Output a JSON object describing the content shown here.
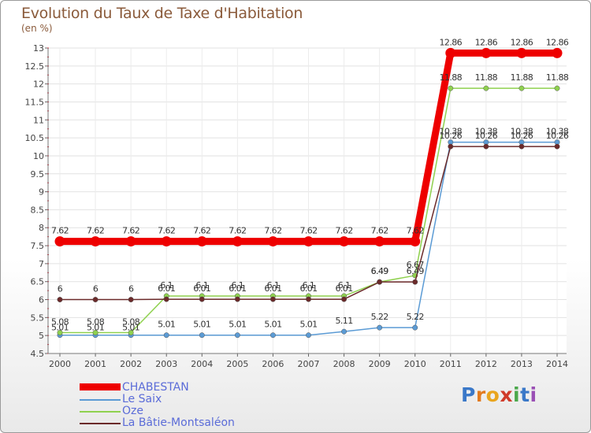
{
  "chart_data": {
    "type": "line",
    "title": "Evolution du Taux de Taxe d'Habitation",
    "ylabel": "(en %)",
    "xlabel": "",
    "ylim": [
      4.5,
      13
    ],
    "yticks": [
      "4.5",
      "5",
      "5.5",
      "6",
      "6.5",
      "7",
      "7.5",
      "8",
      "8.5",
      "9",
      "9.5",
      "10",
      "10.5",
      "11",
      "11.5",
      "12",
      "12.5",
      "13"
    ],
    "categories": [
      "2000",
      "2001",
      "2002",
      "2003",
      "2004",
      "2005",
      "2006",
      "2007",
      "2008",
      "2009",
      "2010",
      "2011",
      "2012",
      "2013",
      "2014"
    ],
    "series": [
      {
        "name": "Le Saix",
        "color": "#5b9bd5",
        "values": [
          5.01,
          5.01,
          5.01,
          5.01,
          5.01,
          5.01,
          5.01,
          5.01,
          5.11,
          5.22,
          5.22,
          10.38,
          10.38,
          10.38,
          10.38
        ],
        "labels": [
          "5.01",
          "5.01",
          "5.01",
          "5.01",
          "5.01",
          "5.01",
          "5.01",
          "5.01",
          "5.11",
          "5.22",
          "5.22",
          "10.38",
          "10.38",
          "10.38",
          "10.38"
        ]
      },
      {
        "name": "Oze",
        "color": "#8fd14f",
        "values": [
          5.08,
          5.08,
          5.08,
          6.1,
          6.1,
          6.1,
          6.1,
          6.1,
          6.1,
          6.49,
          6.67,
          11.88,
          11.88,
          11.88,
          11.88
        ],
        "labels": [
          "5.08",
          "5.08",
          "5.08",
          "6.1",
          "6.1",
          "6.1",
          "6.1",
          "6.1",
          "6.1",
          "6.49",
          "6.67",
          "11.88",
          "11.88",
          "11.88",
          "11.88"
        ]
      },
      {
        "name": "La Bâtie-Montsaléon",
        "color": "#6b2a2a",
        "values": [
          6,
          6,
          6,
          6.01,
          6.01,
          6.01,
          6.01,
          6.01,
          6.01,
          6.49,
          6.49,
          10.26,
          10.26,
          10.26,
          10.26
        ],
        "labels": [
          "6",
          "6",
          "6",
          "6.01",
          "6.01",
          "6.01",
          "6.01",
          "6.01",
          "6.01",
          "6.49",
          "6.49",
          "10.26",
          "10.26",
          "10.26",
          "10.26"
        ]
      },
      {
        "name": "CHABESTAN",
        "color": "#ee0000",
        "values": [
          7.62,
          7.62,
          7.62,
          7.62,
          7.62,
          7.62,
          7.62,
          7.62,
          7.62,
          7.62,
          7.62,
          12.86,
          12.86,
          12.86,
          12.86
        ],
        "labels": [
          "7.62",
          "7.62",
          "7.62",
          "7.62",
          "7.62",
          "7.62",
          "7.62",
          "7.62",
          "7.62",
          "7.62",
          "7.62",
          "12.86",
          "12.86",
          "12.86",
          "12.86"
        ]
      }
    ]
  },
  "legend": [
    {
      "name": "CHABESTAN",
      "color": "#ee0000"
    },
    {
      "name": "Le Saix",
      "color": "#5b9bd5"
    },
    {
      "name": "Oze",
      "color": "#8fd14f"
    },
    {
      "name": "La Bâtie-Montsaléon",
      "color": "#6b2a2a"
    }
  ],
  "logo": {
    "letters": [
      "P",
      "r",
      "o",
      "x",
      "i",
      "t",
      "i"
    ],
    "colors": [
      "#3a78c8",
      "#e27b20",
      "#e9a51e",
      "#d03b2a",
      "#4ba84b",
      "#3a78c8",
      "#9a4fb5"
    ]
  }
}
